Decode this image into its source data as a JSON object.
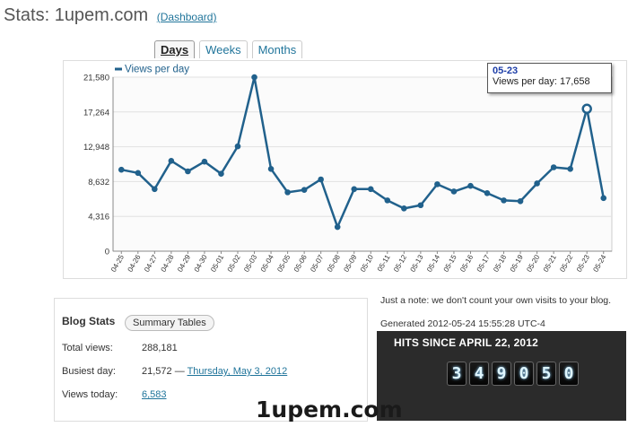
{
  "header": {
    "title": "Stats: 1upem.com",
    "dashboard_link": "(Dashboard)"
  },
  "tabs": [
    {
      "label": "Days",
      "active": true
    },
    {
      "label": "Weeks",
      "active": false
    },
    {
      "label": "Months",
      "active": false
    }
  ],
  "chart_data": {
    "type": "line",
    "legend": "Views per day",
    "legend_position": "top-left",
    "line_color": "#21618c",
    "categories": [
      "04-25",
      "04-26",
      "04-27",
      "04-28",
      "04-29",
      "04-30",
      "05-01",
      "05-02",
      "05-03",
      "05-04",
      "05-05",
      "05-06",
      "05-07",
      "05-08",
      "05-09",
      "05-10",
      "05-11",
      "05-12",
      "05-13",
      "05-14",
      "05-15",
      "05-16",
      "05-17",
      "05-18",
      "05-19",
      "05-20",
      "05-21",
      "05-22",
      "05-23",
      "05-24"
    ],
    "series": [
      {
        "name": "Views per day",
        "values": [
          10100,
          9700,
          7700,
          11200,
          9900,
          11100,
          9600,
          13000,
          21572,
          10200,
          7300,
          7600,
          8900,
          3000,
          7700,
          7700,
          6300,
          5300,
          5700,
          8300,
          7400,
          8100,
          7200,
          6300,
          6200,
          8400,
          10400,
          10200,
          17658,
          6583
        ]
      }
    ],
    "yticks": [
      "0",
      "4,316",
      "8,632",
      "12,948",
      "17,264",
      "21,580"
    ],
    "ylim": [
      0,
      21580
    ],
    "grid": true
  },
  "tooltip": {
    "date": "05-23",
    "text": "Views per day: 17,658"
  },
  "blog_stats": {
    "heading": "Blog Stats",
    "summary_button": "Summary Tables",
    "total_label": "Total views:",
    "total_value": "288,181",
    "busiest_label": "Busiest day:",
    "busiest_value": "21,572 —",
    "busiest_link": "Thursday, May 3, 2012",
    "today_label": "Views today:",
    "today_value": "6,583"
  },
  "note": "Just a note: we don't count your own visits to your blog.",
  "generated": "Generated 2012-05-24 15:55:28 UTC-4",
  "hits": {
    "title": "HITS SINCE APRIL 22, 2012",
    "digits": [
      "3",
      "4",
      "9",
      "0",
      "5",
      "0"
    ]
  },
  "watermark": "1upem.com"
}
